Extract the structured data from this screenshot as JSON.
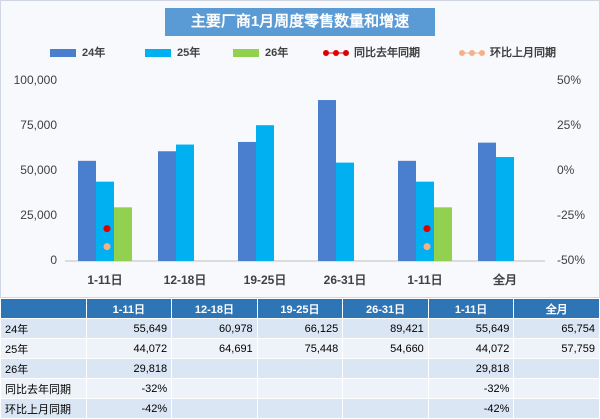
{
  "chart_data": {
    "type": "bar",
    "title": "主要厂商1月周度零售数量和增速",
    "categories": [
      "1-11日",
      "12-18日",
      "19-25日",
      "26-31日",
      "1-11日",
      "全月"
    ],
    "series": [
      {
        "name": "24年",
        "color": "#4a7fd0",
        "values": [
          55649,
          60978,
          66125,
          89421,
          55649,
          65754
        ],
        "value_labels": [
          "55,649",
          "60,978",
          "66,125",
          "89,421",
          "55,649",
          "65,754"
        ]
      },
      {
        "name": "25年",
        "color": "#00b0f0",
        "values": [
          44072,
          64691,
          75448,
          54660,
          44072,
          57759
        ],
        "value_labels": [
          "44,072",
          "64,691",
          "75,448",
          "54,660",
          "44,072",
          "57,759"
        ]
      },
      {
        "name": "26年",
        "color": "#92d050",
        "values": [
          29818,
          null,
          null,
          null,
          29818,
          null
        ],
        "value_labels": [
          "29,818",
          null,
          null,
          null,
          "29,818",
          null
        ]
      },
      {
        "name": "同比去年同期",
        "color": "#e00000",
        "type": "line",
        "axis": "y2",
        "values": [
          -32,
          null,
          null,
          null,
          -32,
          null
        ],
        "value_labels": [
          "-32%",
          null,
          null,
          null,
          "-32%",
          null
        ]
      },
      {
        "name": "环比上月同期",
        "color": "#f4b183",
        "type": "line",
        "axis": "y2",
        "values": [
          -42,
          null,
          null,
          null,
          -42,
          null
        ],
        "value_labels": [
          "-42%",
          null,
          null,
          null,
          "-42%",
          null
        ]
      }
    ],
    "ylim": [
      0,
      100000
    ],
    "yticks": [
      0,
      {
        "value": 25000,
        "label": "25,000"
      },
      {
        "value": 50000,
        "label": "50,000"
      },
      {
        "value": 75000,
        "label": "75,000"
      },
      {
        "value": 100000,
        "label": "100,000"
      }
    ],
    "y2lim": [
      -50,
      50
    ],
    "y2ticks": [
      {
        "value": -50,
        "label": "-50%"
      },
      {
        "value": -25,
        "label": "-25%"
      },
      {
        "value": 0,
        "label": "0%"
      },
      {
        "value": 25,
        "label": "25%"
      },
      {
        "value": 50,
        "label": "50%"
      }
    ],
    "grid": false
  }
}
